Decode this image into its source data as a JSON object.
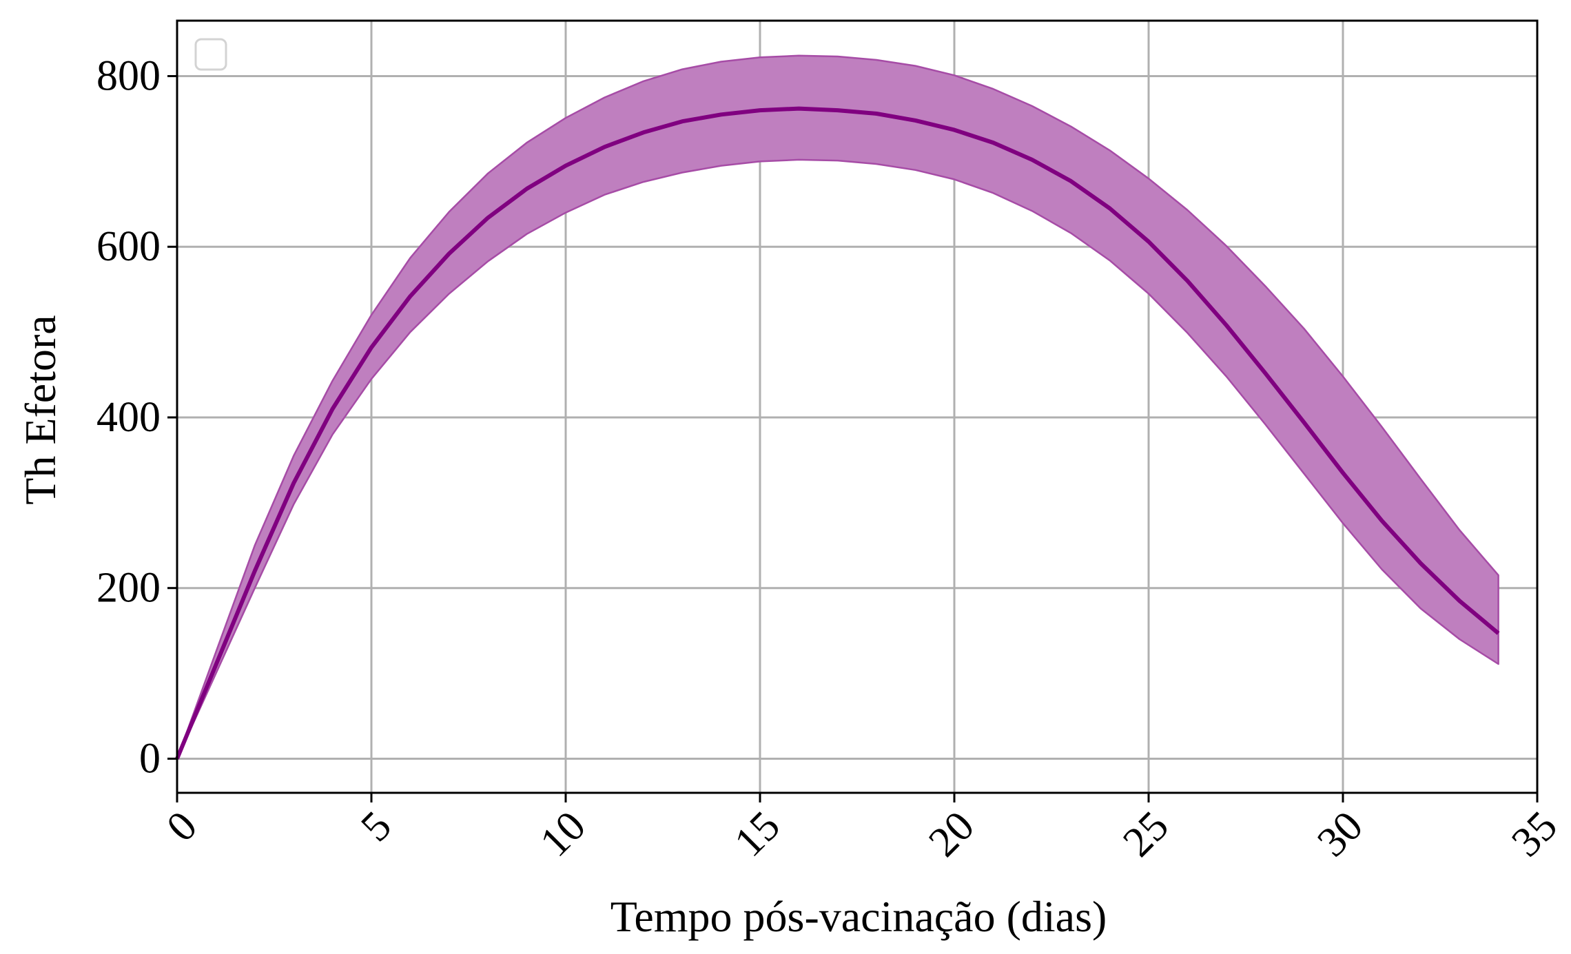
{
  "chart_data": {
    "type": "line",
    "title": "",
    "xlabel": "Tempo pós-vacinação (dias)",
    "ylabel": "Th Efetora",
    "xlim": [
      0,
      35
    ],
    "ylim": [
      -40,
      865
    ],
    "xticks": [
      0,
      5,
      10,
      15,
      20,
      25,
      30,
      35
    ],
    "yticks": [
      0,
      200,
      400,
      600,
      800
    ],
    "xtick_rotation": -45,
    "grid": true,
    "legend": {
      "placement": "top-left",
      "entries": []
    },
    "colors": {
      "line": "#800080",
      "band_fill": "#bf7fbf",
      "band_edge": "#a64ca6",
      "grid": "#b0b0b0",
      "frame": "#000000"
    },
    "series": [
      {
        "x": [
          0,
          1,
          2,
          3,
          4,
          5,
          6,
          7,
          8,
          9,
          10,
          11,
          12,
          13,
          14,
          15,
          16,
          17,
          18,
          19,
          20,
          21,
          22,
          23,
          24,
          25,
          26,
          27,
          28,
          29,
          30,
          31,
          32,
          33,
          34
        ],
        "y": [
          0,
          110,
          220,
          323,
          410,
          482,
          542,
          592,
          634,
          668,
          695,
          717,
          734,
          747,
          755,
          760,
          762,
          760,
          756,
          748,
          737,
          722,
          702,
          677,
          645,
          606,
          560,
          508,
          452,
          394,
          335,
          279,
          229,
          185,
          147
        ],
        "lower": [
          0,
          100,
          200,
          298,
          380,
          445,
          500,
          545,
          583,
          615,
          640,
          661,
          676,
          687,
          695,
          700,
          702,
          701,
          697,
          690,
          679,
          663,
          642,
          616,
          584,
          545,
          499,
          448,
          392,
          334,
          276,
          222,
          176,
          140,
          111
        ],
        "upper": [
          0,
          125,
          250,
          355,
          443,
          520,
          587,
          641,
          686,
          722,
          751,
          775,
          794,
          808,
          817,
          822,
          824,
          823,
          819,
          812,
          801,
          785,
          765,
          741,
          713,
          680,
          643,
          601,
          554,
          504,
          448,
          389,
          328,
          268,
          215
        ]
      }
    ]
  }
}
